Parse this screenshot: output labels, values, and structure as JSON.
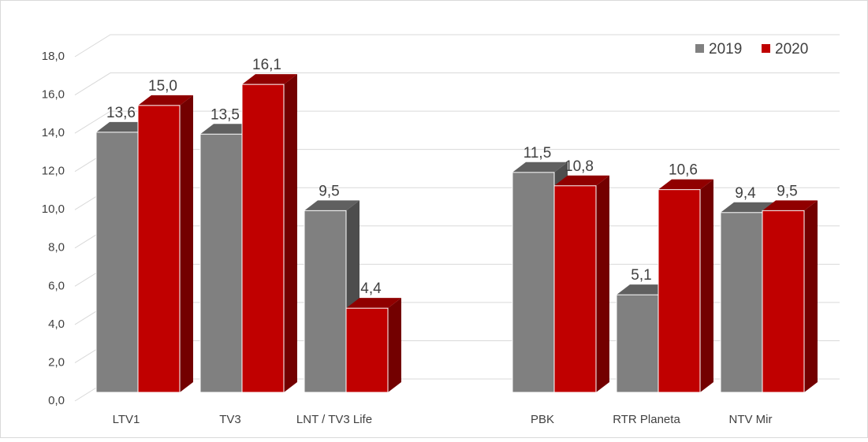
{
  "chart_data": {
    "type": "bar3d",
    "categories": [
      "LTV1",
      "TV3",
      "LNT / TV3 Life",
      null,
      "PBK",
      "RTR Planeta",
      "NTV Mir"
    ],
    "series": [
      {
        "name": "2019",
        "color": "#808080",
        "values": [
          13.6,
          13.5,
          9.5,
          null,
          11.5,
          5.1,
          9.4
        ],
        "value_labels": [
          "13,6",
          "13,5",
          "9,5",
          null,
          "11,5",
          "5,1",
          "9,4"
        ]
      },
      {
        "name": "2020",
        "color": "#c00000",
        "values": [
          15.0,
          16.1,
          4.4,
          null,
          10.8,
          10.6,
          9.5
        ],
        "value_labels": [
          "15,0",
          "16,1",
          "4,4",
          null,
          "10,8",
          "10,6",
          "9,5"
        ]
      }
    ],
    "ylim": [
      0,
      18
    ],
    "yticks": [
      {
        "value": 0,
        "label": "0,0"
      },
      {
        "value": 2,
        "label": "2,0"
      },
      {
        "value": 4,
        "label": "4,0"
      },
      {
        "value": 6,
        "label": "6,0"
      },
      {
        "value": 8,
        "label": "8,0"
      },
      {
        "value": 10,
        "label": "10,0"
      },
      {
        "value": 12,
        "label": "12,0"
      },
      {
        "value": 14,
        "label": "14,0"
      },
      {
        "value": 16,
        "label": "16,0"
      },
      {
        "value": 18,
        "label": "18,0"
      }
    ],
    "grid": true,
    "legend": "top-right"
  }
}
